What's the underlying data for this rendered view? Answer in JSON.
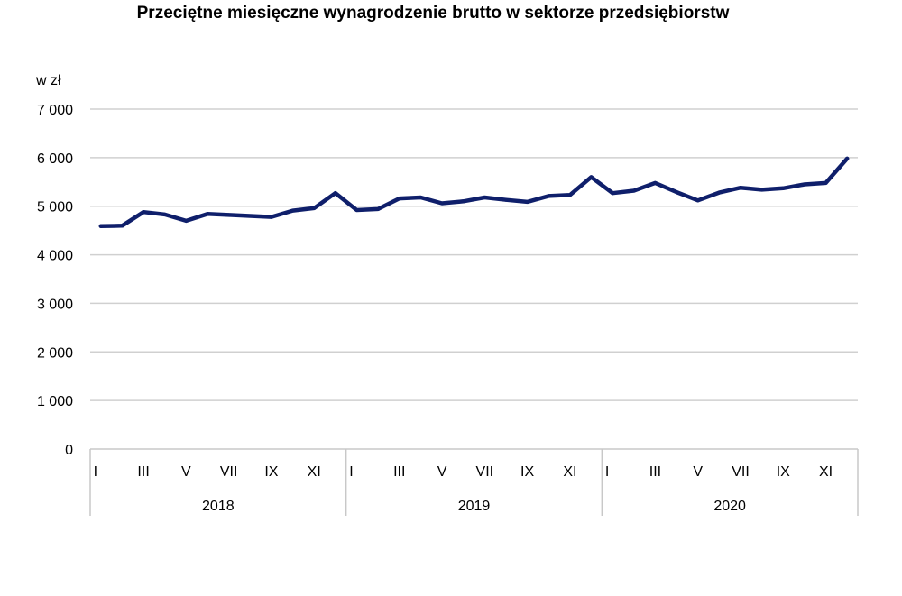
{
  "chart_data": {
    "type": "line",
    "title": "Przeciętne miesięczne wynagrodzenie brutto w sektorze przedsiębiorstw",
    "ylabel": "w zł",
    "xlabel": "",
    "ylim": [
      0,
      7000
    ],
    "y_ticks": [
      "0",
      "1 000",
      "2 000",
      "3 000",
      "4 000",
      "5 000",
      "6 000",
      "7 000"
    ],
    "y_tick_values": [
      0,
      1000,
      2000,
      3000,
      4000,
      5000,
      6000,
      7000
    ],
    "grid": true,
    "month_labels": [
      "I",
      "",
      "III",
      "",
      "V",
      "",
      "VII",
      "",
      "IX",
      "",
      "XI",
      ""
    ],
    "years": [
      "2018",
      "2019",
      "2020"
    ],
    "color": "#0f1f6b",
    "series": [
      {
        "values": [
          4590,
          4600,
          4880,
          4830,
          4700,
          4840,
          4820,
          4800,
          4780,
          4910,
          4960,
          5270,
          4920,
          4940,
          5160,
          5180,
          5060,
          5100,
          5180,
          5130,
          5090,
          5210,
          5230,
          5600,
          5270,
          5320,
          5480,
          5290,
          5120,
          5280,
          5380,
          5340,
          5370,
          5450,
          5480,
          5980
        ]
      }
    ]
  }
}
